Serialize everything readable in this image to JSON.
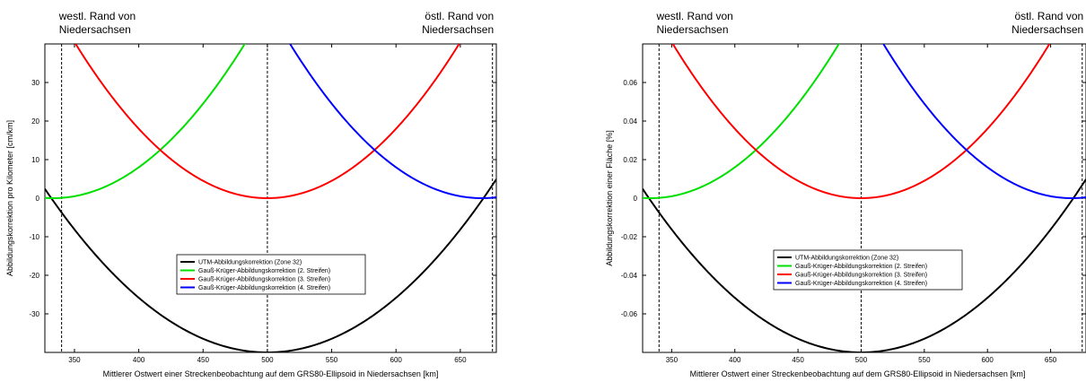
{
  "chart_data": [
    {
      "type": "line",
      "ylabel": "Abbildungskorrektion pro Kilometer [cm/km]",
      "xlabel": "Mittlerer Ostwert einer Streckenbeobachtung auf dem GRS80-Ellipsoid in Niedersachsen [km]",
      "xlim": [
        327,
        678
      ],
      "ylim": [
        -40,
        40
      ],
      "xticks": [
        "350",
        "400",
        "450",
        "500",
        "550",
        "600",
        "650"
      ],
      "xtick_values": [
        350,
        400,
        450,
        500,
        550,
        600,
        650
      ],
      "yticks": [
        "-30",
        "-20",
        "-10",
        "0",
        "10",
        "20",
        "30"
      ],
      "ytick_values": [
        -30,
        -20,
        -10,
        0,
        10,
        20,
        30
      ],
      "vlines": [
        340,
        500,
        675
      ],
      "annotations": [
        {
          "text": [
            "westl. Rand von",
            "Niedersachsen"
          ],
          "anchor": "start",
          "x_data": 338
        },
        {
          "text": [
            "östl. Rand von",
            "Niedersachsen"
          ],
          "anchor": "end",
          "x_data": 676
        }
      ],
      "legend_position": "center",
      "series": [
        {
          "name": "UTM-Abbildungskorrektion (Zone 32)",
          "color": "#000000",
          "center": 500,
          "scale": -40,
          "offset": 40
        },
        {
          "name": "Gauß-Krüger-Abbildungskorrektion (2. Streifen)",
          "color": "#00e000",
          "center": 333.3,
          "scale": 0,
          "offset": 0
        },
        {
          "name": "Gauß-Krüger-Abbildungskorrektion (3. Streifen)",
          "color": "#ff0000",
          "center": 500,
          "scale": 0,
          "offset": 0
        },
        {
          "name": "Gauß-Krüger-Abbildungskorrektion (4. Streifen)",
          "color": "#0000ff",
          "center": 666.7,
          "scale": 0,
          "offset": 0
        }
      ]
    },
    {
      "type": "line",
      "ylabel": "Abbildungskorrektion einer Fläche [%]",
      "xlabel": "Mittlerer Ostwert einer Streckenbeobachtung auf dem GRS80-Ellipsoid in Niedersachsen [km]",
      "xlim": [
        327,
        678
      ],
      "ylim": [
        -0.08,
        0.08
      ],
      "xticks": [
        "350",
        "400",
        "450",
        "500",
        "550",
        "600",
        "650"
      ],
      "xtick_values": [
        350,
        400,
        450,
        500,
        550,
        600,
        650
      ],
      "yticks": [
        "-0.06",
        "-0.04",
        "-0.02",
        "0",
        "0.02",
        "0.04",
        "0.06"
      ],
      "ytick_values": [
        -0.06,
        -0.04,
        -0.02,
        0,
        0.02,
        0.04,
        0.06
      ],
      "vlines": [
        340,
        500,
        675
      ],
      "annotations": [
        {
          "text": [
            "westl. Rand von",
            "Niedersachsen"
          ],
          "anchor": "start",
          "x_data": 338
        },
        {
          "text": [
            "östl. Rand von",
            "Niedersachsen"
          ],
          "anchor": "end",
          "x_data": 676
        }
      ],
      "legend_position": "center",
      "series": [
        {
          "name": "UTM-Abbildungskorrektion (Zone 32)",
          "color": "#000000",
          "center": 500,
          "scale": -0.08,
          "offset": 0.08
        },
        {
          "name": "Gauß-Krüger-Abbildungskorrektion (2. Streifen)",
          "color": "#00e000",
          "center": 333.3,
          "scale": 0,
          "offset": 0
        },
        {
          "name": "Gauß-Krüger-Abbildungskorrektion (3. Streifen)",
          "color": "#ff0000",
          "center": 500,
          "scale": 0,
          "offset": 0
        },
        {
          "name": "Gauß-Krüger-Abbildungskorrektion (4. Streifen)",
          "color": "#0000ff",
          "center": 666.7,
          "scale": 0,
          "offset": 0
        }
      ]
    }
  ]
}
